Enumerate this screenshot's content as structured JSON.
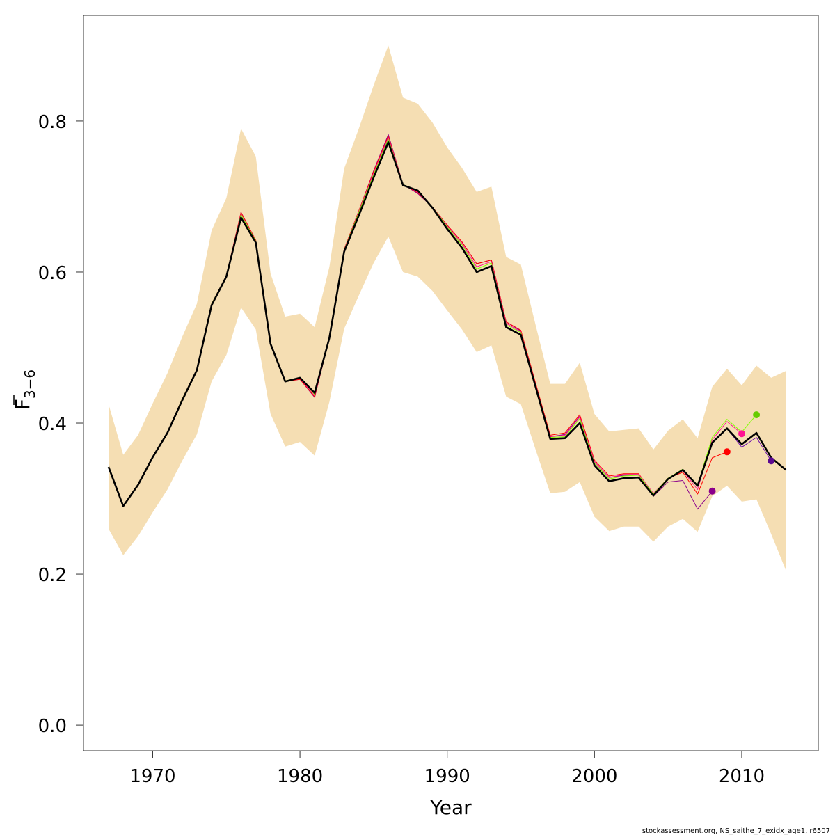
{
  "chart_data": {
    "type": "line",
    "xlabel": "Year",
    "ylabel_main": "F",
    "ylabel_sub": "3−6",
    "footer": "stockassessment.org, NS_saithe_7_exidx_age1, r6507",
    "xlim": [
      1965.3,
      2015.2
    ],
    "ylim": [
      -0.034,
      0.94
    ],
    "xticks": [
      1970,
      1980,
      1990,
      2000,
      2010
    ],
    "yticks": [
      0.0,
      0.2,
      0.4,
      0.6,
      0.8
    ],
    "ytick_labels": [
      "0.0",
      "0.2",
      "0.4",
      "0.6",
      "0.8"
    ],
    "band_color": "#f5deb3",
    "years": [
      1967,
      1968,
      1969,
      1970,
      1971,
      1972,
      1973,
      1974,
      1975,
      1976,
      1977,
      1978,
      1979,
      1980,
      1981,
      1982,
      1983,
      1984,
      1985,
      1986,
      1987,
      1988,
      1989,
      1990,
      1991,
      1992,
      1993,
      1994,
      1995,
      1996,
      1997,
      1998,
      1999,
      2000,
      2001,
      2002,
      2003,
      2004,
      2005,
      2006,
      2007,
      2008,
      2009,
      2010,
      2011,
      2012,
      2013
    ],
    "ci_upper": [
      0.425,
      0.358,
      0.384,
      0.426,
      0.466,
      0.514,
      0.558,
      0.655,
      0.698,
      0.79,
      0.753,
      0.598,
      0.541,
      0.545,
      0.527,
      0.607,
      0.737,
      0.79,
      0.847,
      0.9,
      0.831,
      0.823,
      0.798,
      0.765,
      0.738,
      0.706,
      0.713,
      0.62,
      0.61,
      0.53,
      0.452,
      0.452,
      0.48,
      0.412,
      0.389,
      0.391,
      0.393,
      0.365,
      0.39,
      0.405,
      0.38,
      0.448,
      0.472,
      0.45,
      0.476,
      0.46,
      0.469
    ],
    "ci_lower": [
      0.26,
      0.225,
      0.25,
      0.282,
      0.312,
      0.35,
      0.385,
      0.455,
      0.49,
      0.553,
      0.524,
      0.412,
      0.369,
      0.375,
      0.357,
      0.428,
      0.525,
      0.569,
      0.612,
      0.647,
      0.6,
      0.594,
      0.575,
      0.549,
      0.524,
      0.494,
      0.503,
      0.435,
      0.425,
      0.365,
      0.307,
      0.309,
      0.322,
      0.276,
      0.257,
      0.263,
      0.263,
      0.243,
      0.263,
      0.273,
      0.256,
      0.303,
      0.317,
      0.296,
      0.299,
      0.253,
      0.205
    ],
    "series": [
      {
        "color": "#000000",
        "width": 2.6,
        "values": [
          0.342,
          0.29,
          0.318,
          0.355,
          0.387,
          0.43,
          0.47,
          0.556,
          0.594,
          0.672,
          0.639,
          0.505,
          0.455,
          0.46,
          0.44,
          0.513,
          0.627,
          0.675,
          0.725,
          0.772,
          0.715,
          0.708,
          0.685,
          0.657,
          0.632,
          0.6,
          0.608,
          0.527,
          0.517,
          0.448,
          0.379,
          0.38,
          0.4,
          0.344,
          0.323,
          0.327,
          0.328,
          0.304,
          0.326,
          0.338,
          0.317,
          0.374,
          0.393,
          0.372,
          0.387,
          0.354,
          0.338
        ]
      },
      {
        "color": "#80ff00",
        "width": 1.0,
        "values": [
          0.342,
          0.29,
          0.318,
          0.355,
          0.388,
          0.432,
          0.471,
          0.558,
          0.595,
          0.676,
          0.641,
          0.506,
          0.456,
          0.46,
          0.438,
          0.513,
          0.629,
          0.679,
          0.729,
          0.776,
          0.716,
          0.707,
          0.686,
          0.66,
          0.636,
          0.604,
          0.612,
          0.53,
          0.52,
          0.45,
          0.381,
          0.382,
          0.406,
          0.347,
          0.326,
          0.33,
          0.331,
          0.306,
          0.327,
          0.339,
          0.318,
          0.381,
          0.405,
          0.388,
          0.411
        ]
      },
      {
        "color": "#ff1493",
        "width": 1.0,
        "values": [
          0.342,
          0.29,
          0.318,
          0.355,
          0.388,
          0.432,
          0.471,
          0.558,
          0.595,
          0.677,
          0.641,
          0.506,
          0.456,
          0.459,
          0.437,
          0.513,
          0.629,
          0.68,
          0.731,
          0.778,
          0.716,
          0.706,
          0.686,
          0.661,
          0.638,
          0.607,
          0.614,
          0.532,
          0.521,
          0.451,
          0.382,
          0.384,
          0.408,
          0.349,
          0.328,
          0.332,
          0.332,
          0.307,
          0.326,
          0.337,
          0.312,
          0.378,
          0.402,
          0.386
        ]
      },
      {
        "color": "#ff0000",
        "width": 1.0,
        "values": [
          0.342,
          0.29,
          0.318,
          0.355,
          0.388,
          0.432,
          0.471,
          0.558,
          0.595,
          0.679,
          0.642,
          0.506,
          0.455,
          0.458,
          0.435,
          0.513,
          0.63,
          0.681,
          0.733,
          0.78,
          0.716,
          0.705,
          0.686,
          0.662,
          0.64,
          0.611,
          0.616,
          0.534,
          0.523,
          0.453,
          0.384,
          0.387,
          0.411,
          0.351,
          0.33,
          0.333,
          0.333,
          0.306,
          0.327,
          0.335,
          0.306,
          0.354,
          0.362
        ]
      },
      {
        "color": "#8b008b",
        "width": 1.0,
        "values": [
          0.342,
          0.29,
          0.318,
          0.355,
          0.388,
          0.432,
          0.471,
          0.558,
          0.595,
          0.679,
          0.642,
          0.506,
          0.455,
          0.458,
          0.434,
          0.513,
          0.63,
          0.681,
          0.734,
          0.782,
          0.716,
          0.704,
          0.686,
          0.662,
          0.64,
          0.611,
          0.616,
          0.534,
          0.522,
          0.452,
          0.382,
          0.385,
          0.409,
          0.349,
          0.328,
          0.331,
          0.331,
          0.303,
          0.322,
          0.324,
          0.286,
          0.31
        ]
      },
      {
        "color": "#6a0dad",
        "width": 1.0,
        "values": [
          0.342,
          0.29,
          0.318,
          0.355,
          0.387,
          0.43,
          0.47,
          0.556,
          0.594,
          0.672,
          0.639,
          0.505,
          0.455,
          0.46,
          0.44,
          0.513,
          0.627,
          0.675,
          0.725,
          0.772,
          0.715,
          0.708,
          0.685,
          0.657,
          0.632,
          0.6,
          0.608,
          0.527,
          0.517,
          0.448,
          0.379,
          0.38,
          0.4,
          0.344,
          0.323,
          0.327,
          0.328,
          0.304,
          0.326,
          0.338,
          0.317,
          0.374,
          0.393,
          0.368,
          0.381,
          0.35
        ]
      }
    ],
    "endpoints": [
      {
        "year": 2008,
        "value": 0.31,
        "color": "#8b008b"
      },
      {
        "year": 2009,
        "value": 0.362,
        "color": "#ff0000"
      },
      {
        "year": 2010,
        "value": 0.386,
        "color": "#ff1493"
      },
      {
        "year": 2011,
        "value": 0.411,
        "color": "#66cc00"
      },
      {
        "year": 2012,
        "value": 0.35,
        "color": "#5b0a91"
      }
    ]
  }
}
